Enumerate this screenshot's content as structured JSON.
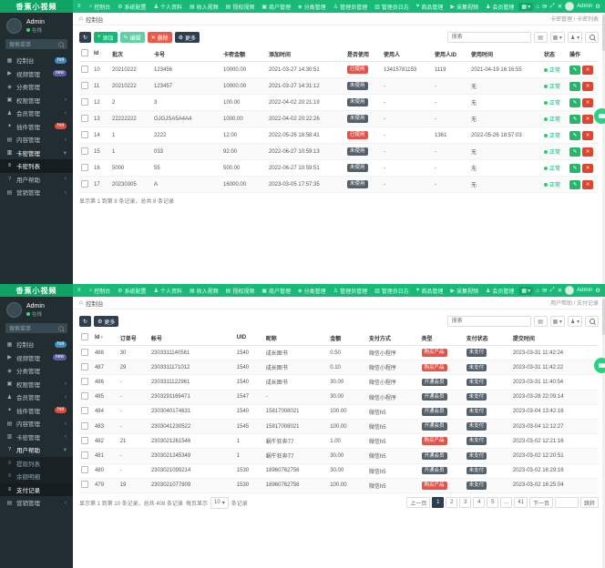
{
  "brand": "香蕉小视频",
  "navbar": {
    "items": [
      {
        "icon": "home",
        "label": "控制台"
      },
      {
        "icon": "gear",
        "label": "系统配置"
      },
      {
        "icon": "user",
        "label": "个人资料"
      },
      {
        "icon": "chart",
        "label": "收入视频"
      },
      {
        "icon": "chart",
        "label": "授权视频"
      },
      {
        "icon": "briefcase",
        "label": "商户管理"
      },
      {
        "icon": "tags",
        "label": "分类管理"
      },
      {
        "icon": "admin",
        "label": "管理员管理"
      },
      {
        "icon": "log",
        "label": "管理员日志"
      },
      {
        "icon": "heart",
        "label": "商品管理"
      },
      {
        "icon": "video",
        "label": "采集视频"
      },
      {
        "icon": "users",
        "label": "会员管理"
      }
    ],
    "right_user": "Admin"
  },
  "user_panel": {
    "name": "Admin",
    "status": "在线"
  },
  "sidebar_search_placeholder": "搜索菜单",
  "panels": [
    {
      "sidebar": [
        {
          "icon": "dashboard",
          "label": "控制台",
          "badge": {
            "text": "hot",
            "color": "#3c8dbc"
          }
        },
        {
          "icon": "video",
          "label": "视频管理",
          "badge": {
            "text": "new",
            "color": "#605ca8"
          }
        },
        {
          "icon": "tags",
          "label": "分类管理"
        },
        {
          "icon": "lock",
          "label": "权限管理",
          "chevron": true
        },
        {
          "icon": "users",
          "label": "会员管理",
          "chevron": true
        },
        {
          "icon": "plug",
          "label": "插件管理",
          "badge": {
            "text": "hot",
            "color": "#dd4b39"
          }
        },
        {
          "icon": "file",
          "label": "内容管理",
          "chevron": true
        },
        {
          "icon": "card",
          "label": "卡密管理",
          "expanded": true
        },
        {
          "icon": "list",
          "label": "卡密列表",
          "submenu": true,
          "active": true
        },
        {
          "icon": "help",
          "label": "用户帮助",
          "chevron": true
        },
        {
          "icon": "chart",
          "label": "营销管理",
          "chevron": true
        }
      ],
      "breadcrumb": {
        "left": "控制台",
        "right": "卡密管理 / 卡密列表"
      },
      "toolbar": {
        "buttons": [
          {
            "icon": "refresh",
            "label": "",
            "style": "dark",
            "name": "refresh-button"
          },
          {
            "icon": "plus",
            "label": "添加",
            "style": "green",
            "name": "add-button"
          },
          {
            "icon": "edit",
            "label": "编辑",
            "style": "lightgreen",
            "name": "edit-button"
          },
          {
            "icon": "trash",
            "label": "删除",
            "style": "red",
            "name": "delete-button"
          },
          {
            "icon": "gear",
            "label": "更多",
            "style": "dark",
            "name": "more-button"
          }
        ],
        "search_placeholder": "搜索"
      },
      "table": {
        "headers": [
          "",
          "Id",
          "批次",
          "卡号",
          "卡密金额",
          "添加时间",
          "是否使用",
          "使用人",
          "使用人ID",
          "使用时间",
          "状态",
          "操作"
        ],
        "rows": [
          [
            "CHECK",
            "10",
            "20210222",
            "123456",
            "10000.00",
            "2021-03-27 14:30:51",
            {
              "badge": "已使用",
              "variant": "red"
            },
            "13415781153",
            "1119",
            "2021-04-19 16:16:55",
            {
              "status": "正常"
            },
            "ACTIONS"
          ],
          [
            "CHECK",
            "11",
            "20210222",
            "123457",
            "10000.00",
            "2021-03-27 14:31:12",
            {
              "badge": "未使用",
              "variant": "dark"
            },
            "-",
            "-",
            "无",
            {
              "status": "正常"
            },
            "ACTIONS"
          ],
          [
            "CHECK",
            "12",
            "2",
            "3",
            "100.00",
            "2022-04-02 20:21:19",
            {
              "badge": "未使用",
              "variant": "dark"
            },
            "-",
            "-",
            "无",
            {
              "status": "正常"
            },
            "ACTIONS"
          ],
          [
            "CHECK",
            "13",
            "22222222",
            "GJGJSA5A4A4",
            "1000.00",
            "2022-04-02 20:22:26",
            {
              "badge": "未使用",
              "variant": "dark"
            },
            "-",
            "-",
            "无",
            {
              "status": "正常"
            },
            "ACTIONS"
          ],
          [
            "CHECK",
            "14",
            "1",
            "2222",
            "12.00",
            "2022-05-26 18:58:41",
            {
              "badge": "已使用",
              "variant": "red"
            },
            "-",
            "1361",
            "2022-05-26 18:57:03",
            {
              "status": "正常"
            },
            "ACTIONS"
          ],
          [
            "CHECK",
            "15",
            "1",
            "033",
            "92.00",
            "2022-06-27 10:59:13",
            {
              "badge": "未使用",
              "variant": "dark"
            },
            "-",
            "-",
            "无",
            {
              "status": "正常"
            },
            "ACTIONS"
          ],
          [
            "CHECK",
            "16",
            "5000",
            "55",
            "500.00",
            "2022-06-27 10:59:51",
            {
              "badge": "未使用",
              "variant": "dark"
            },
            "-",
            "-",
            "无",
            {
              "status": "正常"
            },
            "ACTIONS"
          ],
          [
            "CHECK",
            "17",
            "20230305",
            "A",
            "16000.00",
            "2023-03-05 17:57:35",
            {
              "badge": "未使用",
              "variant": "dark"
            },
            "-",
            "-",
            "无",
            {
              "status": "正常"
            },
            "ACTIONS"
          ]
        ]
      },
      "summary": "显示第 1 到第 8 条记录，总共 8 条记录"
    },
    {
      "sidebar": [
        {
          "icon": "dashboard",
          "label": "控制台",
          "badge": {
            "text": "hot",
            "color": "#3c8dbc"
          }
        },
        {
          "icon": "video",
          "label": "视频管理",
          "badge": {
            "text": "new",
            "color": "#605ca8"
          }
        },
        {
          "icon": "tags",
          "label": "分类管理"
        },
        {
          "icon": "lock",
          "label": "权限管理",
          "chevron": true
        },
        {
          "icon": "users",
          "label": "会员管理",
          "chevron": true
        },
        {
          "icon": "plug",
          "label": "插件管理",
          "badge": {
            "text": "hot",
            "color": "#dd4b39"
          }
        },
        {
          "icon": "file",
          "label": "内容管理",
          "chevron": true
        },
        {
          "icon": "card",
          "label": "卡密管理",
          "chevron": true
        },
        {
          "icon": "help",
          "label": "用户帮助",
          "expanded": true
        },
        {
          "icon": "list",
          "label": "提现列表",
          "submenu": true
        },
        {
          "icon": "list",
          "label": "余额明细",
          "submenu": true
        },
        {
          "icon": "list",
          "label": "支付记录",
          "submenu": true,
          "active": true
        },
        {
          "icon": "chart",
          "label": "营销管理",
          "chevron": true
        }
      ],
      "breadcrumb": {
        "left": "控制台",
        "right": "用户帮助 / 支付记录"
      },
      "toolbar": {
        "buttons": [
          {
            "icon": "refresh",
            "label": "",
            "style": "dark",
            "name": "refresh-button"
          },
          {
            "icon": "gear",
            "label": "更多",
            "style": "dark",
            "name": "more-button"
          }
        ],
        "search_placeholder": "搜索"
      },
      "table": {
        "headers": [
          "",
          "Id",
          "订单号",
          "帐号",
          "UID",
          "昵称",
          "金额",
          "支付方式",
          "类型",
          "支付状态",
          "提交时间"
        ],
        "rows": [
          [
            "CHECK",
            "488",
            "30",
            "2303311140561",
            "1540",
            "成长图书",
            "0.50",
            "微信小程序",
            {
              "badge": "购买产品",
              "variant": "red"
            },
            {
              "badge": "未支付",
              "variant": "dark"
            },
            "2023-03-31 11:42:24"
          ],
          [
            "CHECK",
            "487",
            "29",
            "2303311171012",
            "1540",
            "成长图书",
            "0.10",
            "微信小程序",
            {
              "badge": "购买产品",
              "variant": "red"
            },
            {
              "badge": "未支付",
              "variant": "dark"
            },
            "2023-03-31 11:42:22"
          ],
          [
            "CHECK",
            "486",
            "-",
            "2303311122961",
            "1540",
            "成长图书",
            "30.00",
            "微信小程序",
            {
              "badge": "开通会员",
              "variant": "dark"
            },
            {
              "badge": "未支付",
              "variant": "dark"
            },
            "2023-03-31 11:40:54"
          ],
          [
            "CHECK",
            "485",
            "-",
            "2303291169471",
            "1547",
            "-",
            "30.00",
            "微信小程序",
            {
              "badge": "开通会员",
              "variant": "dark"
            },
            {
              "badge": "未支付",
              "variant": "dark"
            },
            "2023-03-28 22:09:14"
          ],
          [
            "CHECK",
            "484",
            "-",
            "2303040174631",
            "1540",
            "15817008021",
            "100.00",
            "微信h5",
            {
              "badge": "开通会员",
              "variant": "dark"
            },
            {
              "badge": "未支付",
              "variant": "dark"
            },
            "2023-03-04 13:42:16"
          ],
          [
            "CHECK",
            "483",
            "-",
            "2303041230522",
            "1545",
            "15817008021",
            "100.00",
            "微信h5",
            {
              "badge": "开通会员",
              "variant": "dark"
            },
            {
              "badge": "未支付",
              "variant": "dark"
            },
            "2023-03-04 12:12:27"
          ],
          [
            "CHECK",
            "482",
            "21",
            "2303021261546",
            "1",
            "蜗牛狂奔77",
            "1.00",
            "微信h5",
            {
              "badge": "购买产品",
              "variant": "red"
            },
            {
              "badge": "未支付",
              "variant": "dark"
            },
            "2023-03-02 12:21:16"
          ],
          [
            "CHECK",
            "481",
            "-",
            "2303021245349",
            "1",
            "蜗牛狂奔77",
            "30.00",
            "微信h5",
            {
              "badge": "开通会员",
              "variant": "dark"
            },
            {
              "badge": "未支付",
              "variant": "dark"
            },
            "2023-03-02 12:20:51"
          ],
          [
            "CHECK",
            "480",
            "-",
            "2303021099214",
            "1530",
            "18960762756",
            "30.00",
            "微信h5",
            {
              "badge": "开通会员",
              "variant": "dark"
            },
            {
              "badge": "未支付",
              "variant": "dark"
            },
            "2023-03-02 16:29:16"
          ],
          [
            "CHECK",
            "479",
            "19",
            "2303021077809",
            "1530",
            "18960762756",
            "100.00",
            "微信h5",
            {
              "badge": "购买产品",
              "variant": "red"
            },
            {
              "badge": "未支付",
              "variant": "dark"
            },
            "2023-03-02 16:25:04"
          ]
        ]
      },
      "summary": "显示第 1 到第 10 条记录，总共 408 条记录",
      "pager": {
        "per_page_label": "每页显示",
        "per_page": "10",
        "per_page_suffix": "条记录",
        "prev": "上一页",
        "pages": [
          "1",
          "2",
          "3",
          "4",
          "5",
          "...",
          "41"
        ],
        "active": "1",
        "next": "下一页",
        "jump": "跳转"
      }
    }
  ]
}
